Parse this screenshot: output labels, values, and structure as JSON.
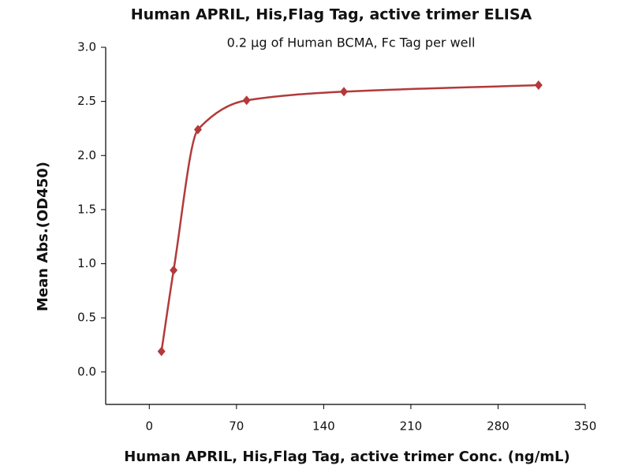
{
  "chart_data": {
    "type": "scatter",
    "title": "Human APRIL, His,Flag Tag, active trimer ELISA",
    "subtitle": "0.2 μg of Human BCMA, Fc Tag per well",
    "x_label": "Human APRIL, His,Flag Tag, active trimer Conc. (ng/mL)",
    "y_label": "Mean Abs.(OD450)",
    "x": [
      9.77,
      19.53,
      39.06,
      78.13,
      156.25,
      312.5
    ],
    "series": [
      {
        "name": "OD450",
        "color": "#b23a3a",
        "values": [
          0.19,
          0.94,
          2.24,
          2.51,
          2.59,
          2.65
        ]
      }
    ],
    "xlim": [
      -35,
      350
    ],
    "xticks": [
      0,
      70,
      140,
      210,
      280,
      350
    ],
    "ylim": [
      -0.3,
      3.0
    ],
    "yticks": [
      {
        "value": 0,
        "label": "0.0"
      },
      0.5,
      {
        "value": 1,
        "label": "1.0"
      },
      1.5,
      {
        "value": 2,
        "label": "2.0"
      },
      2.5,
      {
        "value": 3,
        "label": "3.0"
      }
    ]
  }
}
